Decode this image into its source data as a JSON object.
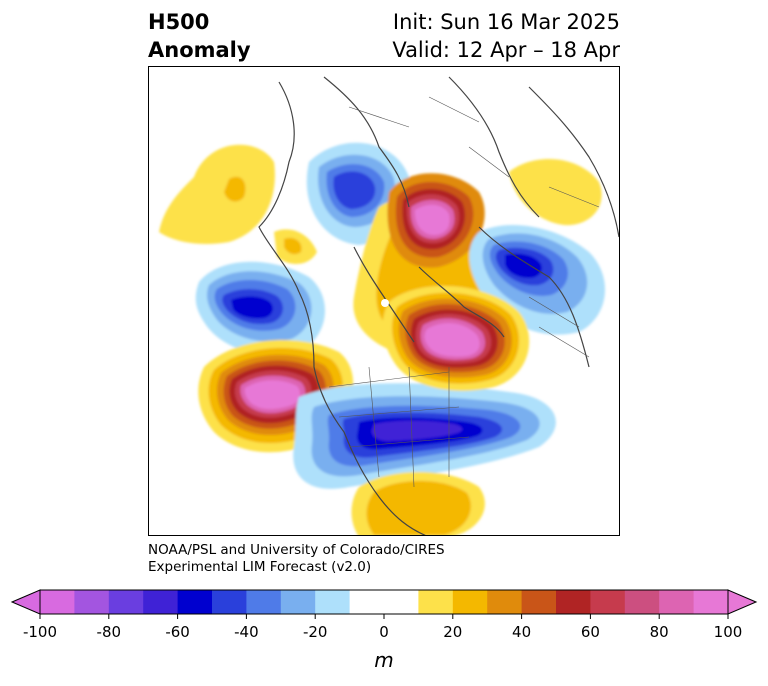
{
  "header": {
    "variable": "H500",
    "field": "Anomaly",
    "init": "Init: Sun 16 Mar 2025",
    "valid": "Valid: 12 Apr – 18 Apr"
  },
  "credit": {
    "line1": "NOAA/PSL and University of Colorado/CIRES",
    "line2": "Experimental LIM Forecast (v2.0)"
  },
  "colorbar": {
    "unit": "m",
    "ticks": [
      "-100",
      "-80",
      "-60",
      "-40",
      "-20",
      "0",
      "20",
      "40",
      "60",
      "80",
      "100"
    ],
    "colors": [
      "#d86ae0",
      "#a355e0",
      "#6a3ee0",
      "#3f22d6",
      "#0000cf",
      "#2a40db",
      "#4f7be8",
      "#79afef",
      "#aee0fb",
      "#ffffff",
      "#ffffff",
      "#fde14a",
      "#f4b800",
      "#e08b0c",
      "#c95518",
      "#b02424",
      "#c63b4d",
      "#cc4f80",
      "#dd64b2",
      "#e778d6"
    ],
    "under_color": "#d86ae0",
    "over_color": "#e778d6"
  }
}
